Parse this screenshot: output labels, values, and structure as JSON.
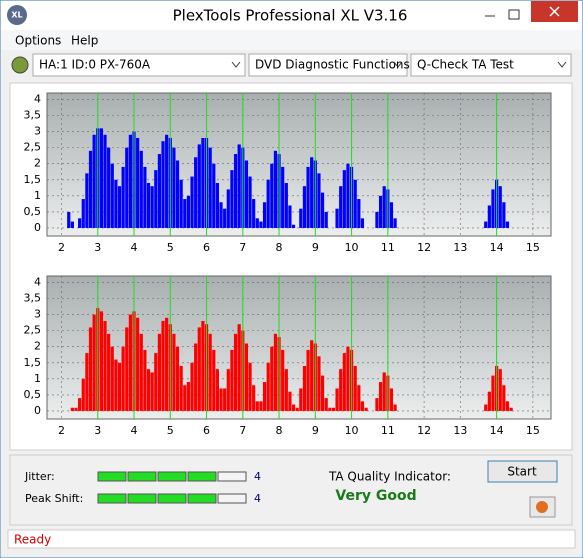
{
  "window": {
    "title": "PlexTools Professional XL V3.16",
    "icon": "XL"
  },
  "menu": [
    "Options",
    "Help"
  ],
  "toolbar": {
    "drive": "HA:1 ID:0  PX-760A",
    "function": "DVD Diagnostic Functions",
    "test": "Q-Check TA Test"
  },
  "results": {
    "jitter": {
      "label": "Jitter:",
      "value": 4
    },
    "peak_shift": {
      "label": "Peak Shift:",
      "value": 4
    },
    "ta_quality": {
      "label": "TA Quality Indicator:",
      "value": "Very Good"
    },
    "start": "Start"
  },
  "status": "Ready",
  "chart_data": [
    {
      "type": "bar",
      "color": "#0000ff",
      "grid": true,
      "xlim": [
        1.6,
        15.5
      ],
      "ylim": [
        -0.25,
        4.2
      ],
      "xticks": [
        2,
        3,
        4,
        5,
        6,
        7,
        8,
        9,
        10,
        11,
        12,
        13,
        14,
        15
      ],
      "yticks": [
        0,
        {
          "value": 0.5,
          "label": "0,5"
        },
        1,
        {
          "value": 1.5,
          "label": "1,5"
        },
        2,
        {
          "value": 2.5,
          "label": "2,5"
        },
        3,
        {
          "value": 3.5,
          "label": "3,5"
        },
        4
      ],
      "reference_lines": [
        3,
        4,
        5,
        6,
        7,
        8,
        9,
        10,
        11,
        14
      ],
      "x": [
        2,
        2.1,
        2.2,
        2.3,
        2.4,
        2.5,
        2.6,
        2.7,
        2.8,
        2.9,
        3,
        3.1,
        3.2,
        3.3,
        3.4,
        3.5,
        3.6,
        3.7,
        3.8,
        3.9,
        4,
        4.1,
        4.2,
        4.3,
        4.4,
        4.5,
        4.6,
        4.7,
        4.8,
        4.9,
        5,
        5.1,
        5.2,
        5.3,
        5.4,
        5.5,
        5.6,
        5.7,
        5.8,
        5.9,
        6,
        6.1,
        6.2,
        6.3,
        6.4,
        6.5,
        6.6,
        6.7,
        6.8,
        6.9,
        7,
        7.1,
        7.2,
        7.3,
        7.4,
        7.5,
        7.6,
        7.7,
        7.8,
        7.9,
        8,
        8.1,
        8.2,
        8.3,
        8.4,
        8.5,
        8.6,
        8.7,
        8.8,
        8.9,
        9,
        9.1,
        9.2,
        9.3,
        9.4,
        9.5,
        9.6,
        9.7,
        9.8,
        9.9,
        10,
        10.1,
        10.2,
        10.3,
        10.4,
        10.5,
        10.6,
        10.7,
        10.8,
        10.9,
        11,
        11.1,
        11.2,
        11.3,
        11.4,
        11.5,
        11.6,
        11.7,
        11.8,
        11.9,
        12,
        12.1,
        12.2,
        12.3,
        12.4,
        12.5,
        12.6,
        12.7,
        12.8,
        12.9,
        13,
        13.1,
        13.2,
        13.3,
        13.4,
        13.5,
        13.6,
        13.7,
        13.8,
        13.9,
        14,
        14.1,
        14.2,
        14.3,
        14.4,
        14.5
      ],
      "values": [
        0,
        0,
        0.5,
        0.2,
        0,
        0.3,
        0.9,
        1.7,
        2.4,
        2.9,
        3.1,
        3.1,
        2.9,
        2.5,
        2,
        1.5,
        1.3,
        1.9,
        2.5,
        2.9,
        3,
        2.8,
        2.4,
        1.9,
        1.4,
        1.3,
        1.8,
        2.3,
        2.7,
        2.9,
        2.8,
        2.5,
        2.1,
        1.5,
        0.9,
        1,
        1.6,
        2.2,
        2.6,
        2.8,
        2.8,
        2.5,
        2,
        1.4,
        0.8,
        0.6,
        1.2,
        1.8,
        2.3,
        2.6,
        2.5,
        2.1,
        1.6,
        0.9,
        0.3,
        0.2,
        0.8,
        1.5,
        2,
        2.4,
        2.3,
        1.9,
        1.4,
        0.7,
        0.1,
        0,
        0.6,
        1.3,
        1.9,
        2.2,
        2.1,
        1.7,
        1.1,
        0.5,
        0,
        0,
        0.6,
        1.3,
        1.8,
        2,
        1.9,
        1.5,
        0.9,
        0.3,
        0,
        0,
        0,
        0.5,
        1,
        1.3,
        1.2,
        0.8,
        0.3,
        0,
        0,
        0,
        0,
        0,
        0,
        0,
        0,
        0,
        0,
        0,
        0,
        0,
        0,
        0,
        0,
        0,
        0,
        0,
        0,
        0,
        0,
        0,
        0,
        0.2,
        0.7,
        1.2,
        1.5,
        1.3,
        0.8,
        0.2,
        0,
        0
      ]
    },
    {
      "type": "bar",
      "color": "#ff0000",
      "grid": true,
      "xlim": [
        1.6,
        15.5
      ],
      "ylim": [
        -0.25,
        4.2
      ],
      "xticks": [
        2,
        3,
        4,
        5,
        6,
        7,
        8,
        9,
        10,
        11,
        12,
        13,
        14,
        15
      ],
      "yticks": [
        0,
        {
          "value": 0.5,
          "label": "0,5"
        },
        1,
        {
          "value": 1.5,
          "label": "1,5"
        },
        2,
        {
          "value": 2.5,
          "label": "2,5"
        },
        3,
        {
          "value": 3.5,
          "label": "3,5"
        },
        4
      ],
      "reference_lines": [
        3,
        4,
        5,
        6,
        7,
        8,
        9,
        10,
        11,
        14
      ],
      "x": [
        2,
        2.1,
        2.2,
        2.3,
        2.4,
        2.5,
        2.6,
        2.7,
        2.8,
        2.9,
        3,
        3.1,
        3.2,
        3.3,
        3.4,
        3.5,
        3.6,
        3.7,
        3.8,
        3.9,
        4,
        4.1,
        4.2,
        4.3,
        4.4,
        4.5,
        4.6,
        4.7,
        4.8,
        4.9,
        5,
        5.1,
        5.2,
        5.3,
        5.4,
        5.5,
        5.6,
        5.7,
        5.8,
        5.9,
        6,
        6.1,
        6.2,
        6.3,
        6.4,
        6.5,
        6.6,
        6.7,
        6.8,
        6.9,
        7,
        7.1,
        7.2,
        7.3,
        7.4,
        7.5,
        7.6,
        7.7,
        7.8,
        7.9,
        8,
        8.1,
        8.2,
        8.3,
        8.4,
        8.5,
        8.6,
        8.7,
        8.8,
        8.9,
        9,
        9.1,
        9.2,
        9.3,
        9.4,
        9.5,
        9.6,
        9.7,
        9.8,
        9.9,
        10,
        10.1,
        10.2,
        10.3,
        10.4,
        10.5,
        10.6,
        10.7,
        10.8,
        10.9,
        11,
        11.1,
        11.2,
        11.3,
        11.4,
        11.5,
        11.6,
        11.7,
        11.8,
        11.9,
        12,
        12.1,
        12.2,
        12.3,
        12.4,
        12.5,
        12.6,
        12.7,
        12.8,
        12.9,
        13,
        13.1,
        13.2,
        13.3,
        13.4,
        13.5,
        13.6,
        13.7,
        13.8,
        13.9,
        14,
        14.1,
        14.2,
        14.3,
        14.4,
        14.5
      ],
      "values": [
        0,
        0,
        0,
        0.1,
        0.1,
        0.4,
        1,
        1.8,
        2.6,
        3,
        3.2,
        3.1,
        2.8,
        2.4,
        2,
        1.6,
        1.5,
        2,
        2.6,
        3,
        3.1,
        2.9,
        2.4,
        1.9,
        1.3,
        1.2,
        1.8,
        2.4,
        2.8,
        2.9,
        2.7,
        2.4,
        2,
        1.4,
        0.8,
        0.9,
        1.5,
        2.1,
        2.6,
        2.8,
        2.7,
        2.4,
        1.9,
        1.3,
        0.7,
        0.7,
        1.3,
        1.9,
        2.4,
        2.7,
        2.5,
        2.1,
        1.5,
        0.8,
        0.3,
        0.3,
        0.9,
        1.5,
        2,
        2.4,
        2.3,
        1.9,
        1.3,
        0.6,
        0.2,
        0.1,
        0.7,
        1.4,
        1.9,
        2.2,
        2.1,
        1.7,
        1.1,
        0.4,
        0.1,
        0.1,
        0.7,
        1.3,
        1.8,
        2,
        1.9,
        1.4,
        0.8,
        0.3,
        0.1,
        0,
        0,
        0.4,
        0.9,
        1.2,
        1.1,
        0.7,
        0.2,
        0,
        0,
        0,
        0,
        0,
        0,
        0,
        0,
        0,
        0,
        0,
        0,
        0,
        0,
        0,
        0,
        0,
        0,
        0,
        0,
        0,
        0,
        0,
        0,
        0.2,
        0.6,
        1.1,
        1.4,
        1.3,
        0.8,
        0.3,
        0.1,
        0
      ]
    }
  ]
}
